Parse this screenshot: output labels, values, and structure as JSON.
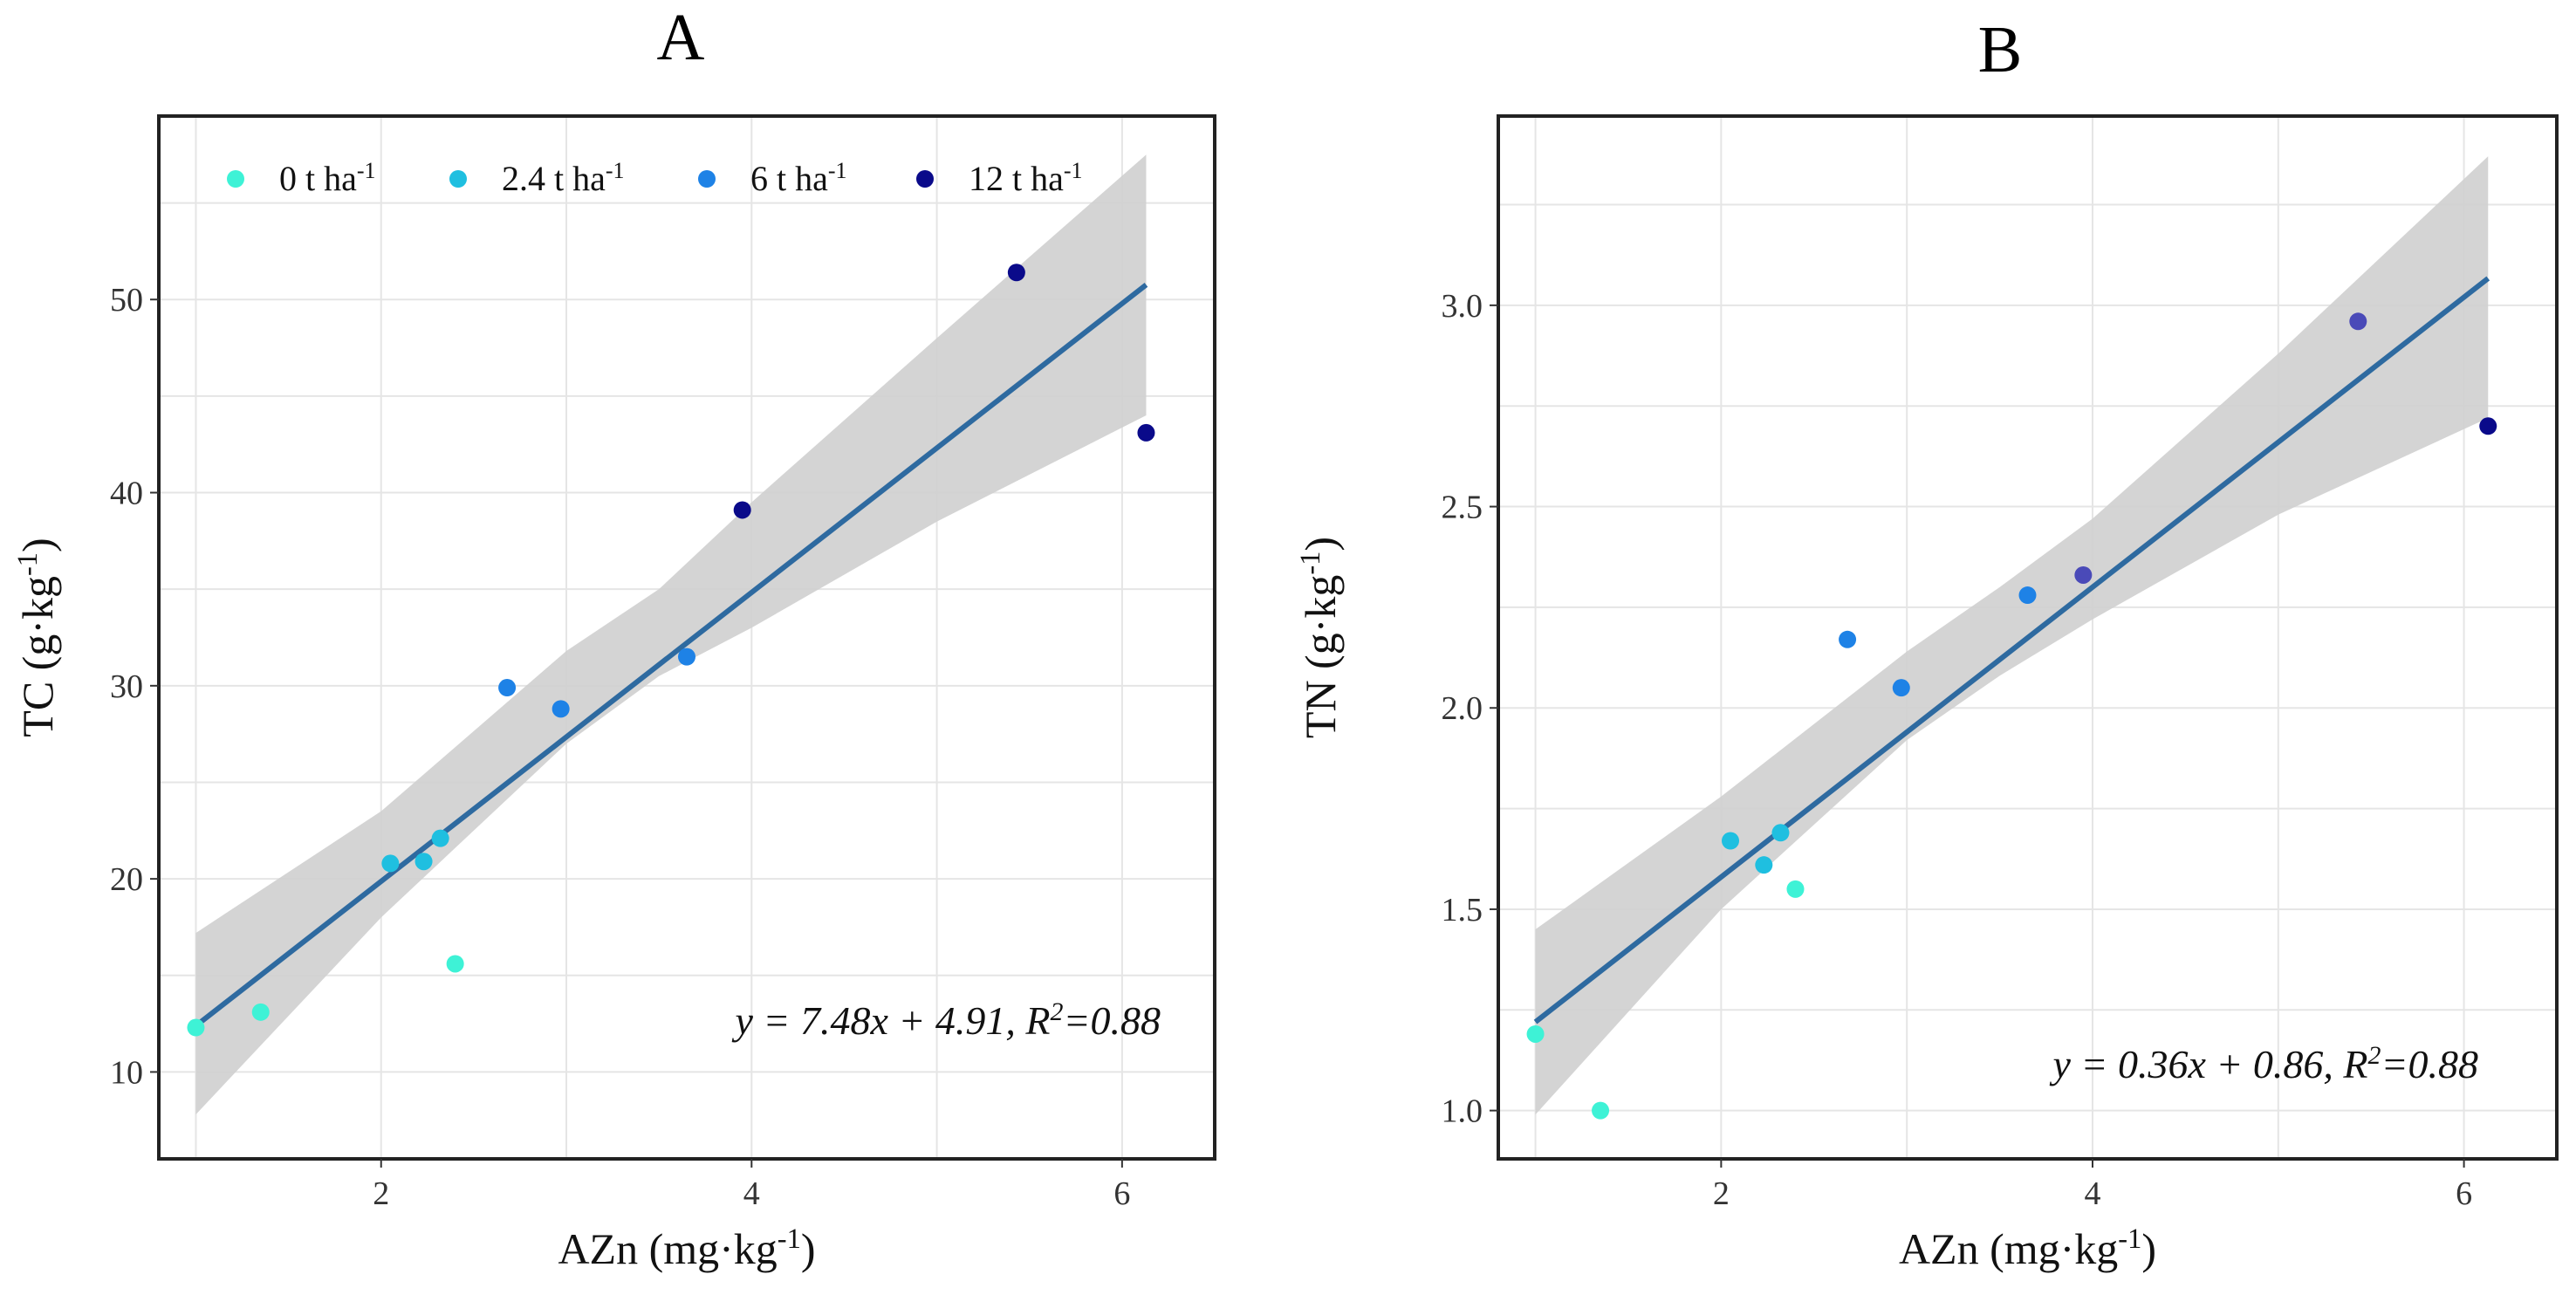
{
  "colors": {
    "band": "#cfcfcf",
    "fit_line": "#2e6aa0",
    "grid": "#e5e5e5",
    "frame": "#222222"
  },
  "legend": {
    "items": [
      {
        "label": "0 t ha",
        "sup": "-1",
        "color": "#3ef2d6"
      },
      {
        "label": "2.4 t ha",
        "sup": "-1",
        "color": "#1fbfe0"
      },
      {
        "label": "6 t ha",
        "sup": "-1",
        "color": "#1e82e6"
      },
      {
        "label": "12 t ha",
        "sup": "-1",
        "color": "#0a0a8a"
      }
    ]
  },
  "chart_data": [
    {
      "type": "scatter",
      "title": "A",
      "xlabel": {
        "text": "AZn (mg·kg",
        "sup": "-1",
        "close": ")"
      },
      "ylabel": {
        "text": "TC (g·kg",
        "sup": "-1",
        "close": ")"
      },
      "xlim": [
        0.8,
        6.5
      ],
      "ylim": [
        5.5,
        59.5
      ],
      "xticks": [
        2,
        4,
        6
      ],
      "yticks": [
        10,
        20,
        30,
        40,
        50
      ],
      "xtick_labels": [
        "2",
        "4",
        "6"
      ],
      "ytick_labels": [
        "10",
        "20",
        "30",
        "40",
        "50"
      ],
      "grid": true,
      "points": [
        {
          "x": 1.0,
          "y": 12.3,
          "color": "#3ef2d6"
        },
        {
          "x": 1.35,
          "y": 13.1,
          "color": "#3ef2d6"
        },
        {
          "x": 2.4,
          "y": 15.6,
          "color": "#3ef2d6"
        },
        {
          "x": 2.05,
          "y": 20.8,
          "color": "#1fbfe0"
        },
        {
          "x": 2.23,
          "y": 20.9,
          "color": "#1fbfe0"
        },
        {
          "x": 2.32,
          "y": 22.1,
          "color": "#1fbfe0"
        },
        {
          "x": 2.68,
          "y": 29.9,
          "color": "#1e82e6"
        },
        {
          "x": 2.97,
          "y": 28.8,
          "color": "#1e82e6"
        },
        {
          "x": 3.65,
          "y": 31.5,
          "color": "#1e82e6"
        },
        {
          "x": 3.95,
          "y": 39.1,
          "color": "#0a0a8a"
        },
        {
          "x": 5.43,
          "y": 51.4,
          "color": "#0a0a8a"
        },
        {
          "x": 6.13,
          "y": 43.1,
          "color": "#0a0a8a"
        }
      ],
      "fit": {
        "slope": 7.48,
        "intercept": 4.91,
        "x_range": [
          1.0,
          6.13
        ]
      },
      "confidence_band": {
        "x": [
          1.0,
          2.0,
          3.0,
          3.5,
          4.0,
          5.0,
          6.13
        ],
        "lower": [
          7.8,
          18.0,
          27.0,
          30.5,
          33.0,
          38.5,
          44.0
        ],
        "upper": [
          17.2,
          23.5,
          31.8,
          35.0,
          39.5,
          48.0,
          57.5
        ]
      },
      "equation": {
        "text": "y = 7.48x + 4.91, R",
        "sup": "2",
        "tail": "=0.88"
      }
    },
    {
      "type": "scatter",
      "title": "B",
      "xlabel": {
        "text": "AZn (mg·kg",
        "sup": "-1",
        "close": ")"
      },
      "ylabel": {
        "text": "TN (g·kg",
        "sup": "-1",
        "close": ")"
      },
      "xlim": [
        0.8,
        6.5
      ],
      "ylim": [
        0.88,
        3.47
      ],
      "xticks": [
        2,
        4,
        6
      ],
      "yticks": [
        1.0,
        1.5,
        2.0,
        2.5,
        3.0
      ],
      "xtick_labels": [
        "2",
        "4",
        "6"
      ],
      "ytick_labels": [
        "1.0",
        "1.5",
        "2.0",
        "2.5",
        "3.0"
      ],
      "grid": true,
      "points": [
        {
          "x": 1.0,
          "y": 1.19,
          "color": "#3ef2d6"
        },
        {
          "x": 1.35,
          "y": 1.0,
          "color": "#3ef2d6"
        },
        {
          "x": 2.4,
          "y": 1.55,
          "color": "#3ef2d6"
        },
        {
          "x": 2.05,
          "y": 1.67,
          "color": "#1fbfe0"
        },
        {
          "x": 2.23,
          "y": 1.61,
          "color": "#1fbfe0"
        },
        {
          "x": 2.32,
          "y": 1.69,
          "color": "#1fbfe0"
        },
        {
          "x": 2.68,
          "y": 2.17,
          "color": "#1e82e6"
        },
        {
          "x": 2.97,
          "y": 2.05,
          "color": "#1e82e6"
        },
        {
          "x": 3.65,
          "y": 2.28,
          "color": "#1e82e6"
        },
        {
          "x": 3.95,
          "y": 2.33,
          "color": "#4a4ab8"
        },
        {
          "x": 5.43,
          "y": 2.96,
          "color": "#4a4ab8"
        },
        {
          "x": 6.13,
          "y": 2.7,
          "color": "#0a0a8a"
        }
      ],
      "fit": {
        "slope": 0.36,
        "intercept": 0.86,
        "x_range": [
          1.0,
          6.13
        ]
      },
      "confidence_band": {
        "x": [
          1.0,
          2.0,
          3.0,
          3.5,
          4.0,
          5.0,
          6.13
        ],
        "lower": [
          0.99,
          1.5,
          1.92,
          2.08,
          2.22,
          2.48,
          2.72
        ],
        "upper": [
          1.45,
          1.78,
          2.14,
          2.3,
          2.47,
          2.88,
          3.37
        ]
      },
      "equation": {
        "text": "y = 0.36x + 0.86, R",
        "sup": "2",
        "tail": "=0.88"
      }
    }
  ]
}
